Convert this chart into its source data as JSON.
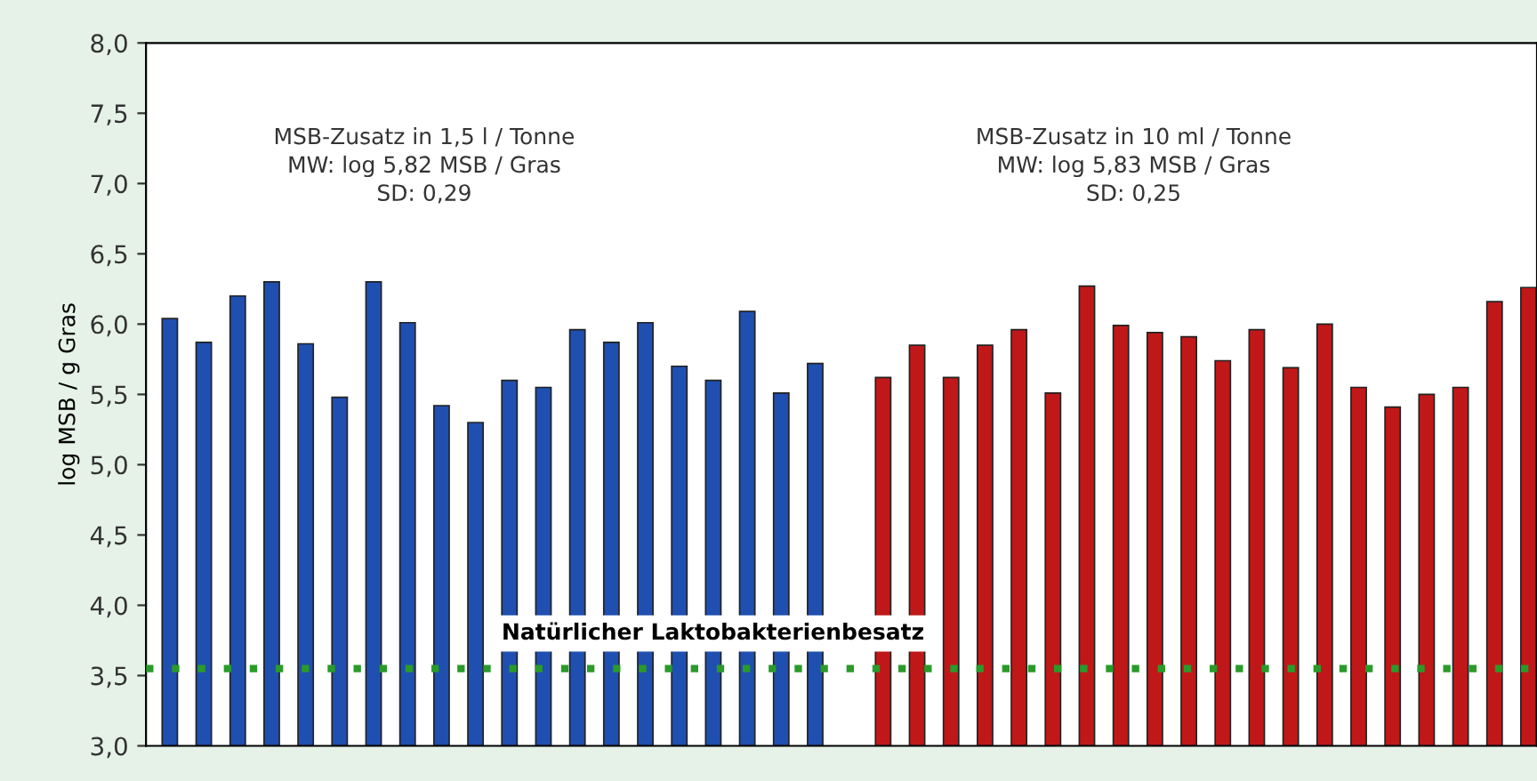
{
  "chart_data": {
    "type": "bar",
    "ylabel": "log MSB / g Gras",
    "categories": [
      null,
      null,
      null,
      null,
      null,
      null,
      null,
      null,
      null,
      null,
      null,
      null,
      null,
      null,
      null,
      null,
      null,
      null,
      null,
      null,
      null,
      null,
      null,
      null,
      null,
      null,
      null,
      null,
      null,
      null,
      null,
      null,
      null,
      null,
      null,
      null,
      null,
      null,
      null,
      null,
      null
    ],
    "series": [
      {
        "color": "#1f4fb0",
        "values": [
          6.04,
          5.87,
          6.2,
          6.3,
          5.86,
          5.48,
          6.3,
          6.01,
          5.42,
          5.3,
          5.6,
          5.55,
          5.96,
          5.87,
          6.01,
          5.7,
          5.6,
          6.09,
          5.51,
          5.72,
          null,
          null,
          null,
          null,
          null,
          null,
          null,
          null,
          null,
          null,
          null,
          null,
          null,
          null,
          null,
          null,
          null,
          null,
          null,
          null,
          null
        ]
      },
      {
        "color": "#c01818",
        "values": [
          null,
          null,
          null,
          null,
          null,
          null,
          null,
          null,
          null,
          null,
          null,
          null,
          null,
          null,
          null,
          null,
          null,
          null,
          null,
          null,
          null,
          5.62,
          5.85,
          5.62,
          5.85,
          5.96,
          5.51,
          6.27,
          5.99,
          5.94,
          5.91,
          5.74,
          5.96,
          5.69,
          6.0,
          5.55,
          5.41,
          5.5,
          5.55,
          6.16,
          6.26
        ]
      }
    ],
    "ylim": [
      3,
      8
    ],
    "yticks": [
      {
        "value": 3,
        "label": "3,0"
      },
      {
        "value": 3.5,
        "label": "3,5"
      },
      {
        "value": 4,
        "label": "4,0"
      },
      {
        "value": 4.5,
        "label": "4,5"
      },
      {
        "value": 5,
        "label": "5,0"
      },
      {
        "value": 5.5,
        "label": "5,5"
      },
      {
        "value": 6,
        "label": "6,0"
      },
      {
        "value": 6.5,
        "label": "6,5"
      },
      {
        "value": 7,
        "label": "7,0"
      },
      {
        "value": 7.5,
        "label": "7,5"
      },
      {
        "value": 8,
        "label": "8,0"
      }
    ],
    "ref_lines": [
      {
        "axis": "y",
        "value": 3.55,
        "label": "Natürlicher Laktobakterienbesatz",
        "color": "#2a9a2a",
        "line_style": "dotted"
      }
    ],
    "annotations": [
      "MSB-Zusatz in 1,5 l / Tonne\nMW: log 5,82 MSB / Gras\nSD: 0,29",
      "MSB-Zusatz in 10 ml / Tonne\nMW: log 5,83 MSB / Gras\nSD: 0,25"
    ],
    "grid": false,
    "legend": false
  }
}
